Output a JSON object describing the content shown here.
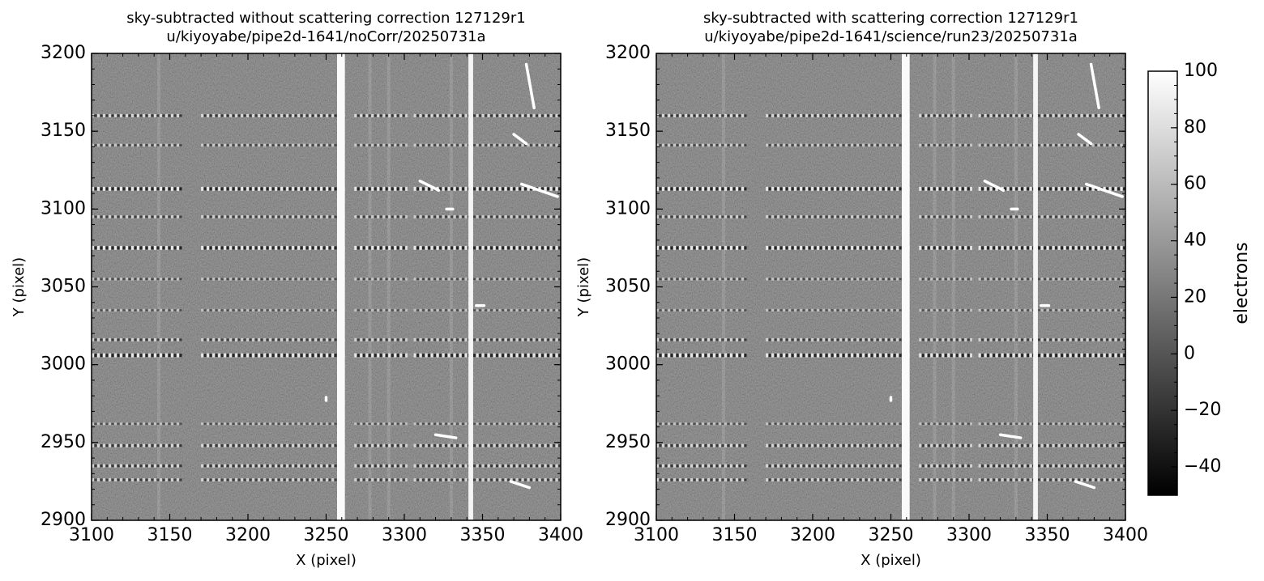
{
  "chart_data": [
    {
      "type": "image",
      "title": "sky-subtracted without scattering correction 127129r1",
      "subtitle": "u/kiyoyabe/pipe2d-1641/noCorr/20250731a",
      "x_label": "X (pixel)",
      "y_label": "Y (pixel)",
      "xlim": [
        3100,
        3400
      ],
      "ylim": [
        2900,
        3200
      ],
      "xticks": [
        3100,
        3150,
        3200,
        3250,
        3300,
        3350,
        3400
      ],
      "yticks": [
        2900,
        2950,
        3000,
        3050,
        3100,
        3150,
        3200
      ]
    },
    {
      "type": "image",
      "title": "sky-subtracted with scattering correction 127129r1",
      "subtitle": "u/kiyoyabe/pipe2d-1641/science/run23/20250731a",
      "x_label": "X (pixel)",
      "y_label": "Y (pixel)",
      "xlim": [
        3100,
        3400
      ],
      "ylim": [
        2900,
        3200
      ],
      "xticks": [
        3100,
        3150,
        3200,
        3250,
        3300,
        3350,
        3400
      ],
      "yticks": [
        2900,
        2950,
        3000,
        3050,
        3100,
        3150,
        3200
      ],
      "colorbar": {
        "label": "electrons",
        "clim": [
          -50,
          100
        ],
        "ticks": [
          {
            "value": -40,
            "label": "−40"
          },
          {
            "value": -20,
            "label": "−20"
          },
          0,
          20,
          40,
          60,
          80,
          100
        ]
      }
    }
  ]
}
